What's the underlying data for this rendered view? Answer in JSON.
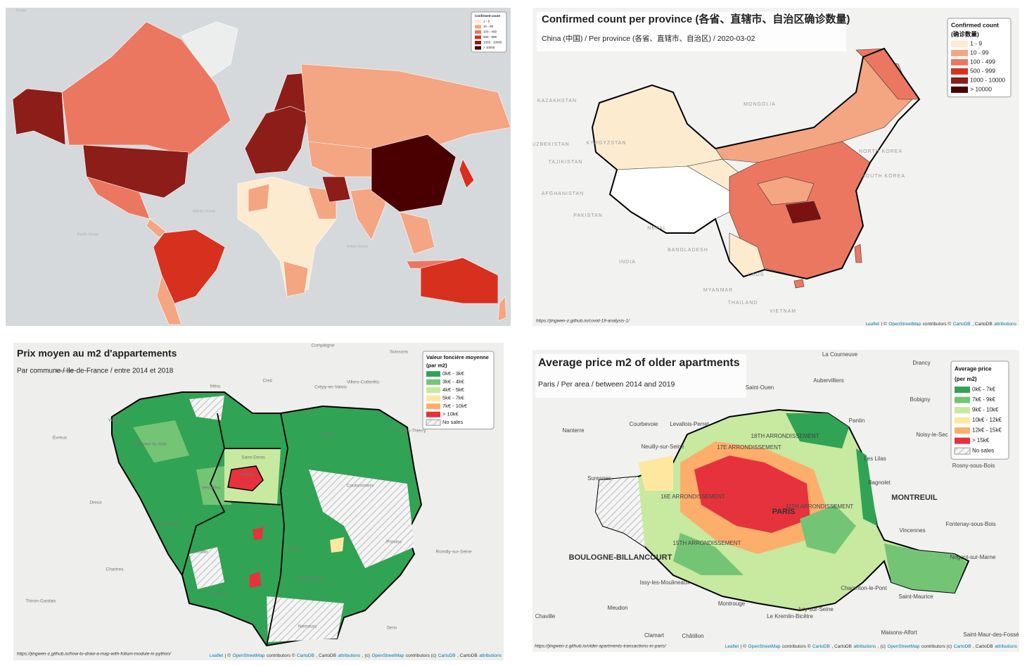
{
  "maps": [
    {
      "labels": [
        "Ocean",
        "Atlantic Ocean",
        "Pacific Ocean",
        "Indian Ocean"
      ],
      "legend": {
        "title": [
          "Confirmed count"
        ],
        "items": [
          {
            "label": "1 - 9",
            "color": "#fdebd0"
          },
          {
            "label": "10 - 99",
            "color": "#f4a582"
          },
          {
            "label": "100 - 499",
            "color": "#ec7760"
          },
          {
            "label": "500 - 999",
            "color": "#d7301f"
          },
          {
            "label": "1000 - 10000",
            "color": "#8c1d18"
          },
          {
            "label": "> 10000",
            "color": "#4a0000"
          }
        ]
      }
    },
    {
      "title": "Confirmed count per province (各省、直辖市、自治区确诊数量)",
      "subtitle": "China (中国) / Per province (各省、直辖市、自治区) / 2020-03-02",
      "labels": [
        "KAZAKHSTAN",
        "MONGOLIA",
        "UZBEKISTAN",
        "KYRGYZSTAN",
        "TAJIKISTAN",
        "AFGHANISTAN",
        "PAKISTAN",
        "NEPAL",
        "INDIA",
        "BANGLADESH",
        "MYANMAR",
        "LAOS",
        "THAILAND",
        "VIETNAM",
        "NORTH KOREA",
        "SOUTH KOREA"
      ],
      "legend": {
        "title": [
          "Confirmed count",
          "(确诊数量)"
        ],
        "items": [
          {
            "label": "1 - 9",
            "color": "#fdebd0"
          },
          {
            "label": "10 - 99",
            "color": "#f4a582"
          },
          {
            "label": "100 - 499",
            "color": "#ec7760"
          },
          {
            "label": "500 - 999",
            "color": "#d7301f"
          },
          {
            "label": "1000 - 10000",
            "color": "#8c1d18"
          },
          {
            "label": "> 10000",
            "color": "#4a0000"
          }
        ]
      },
      "source": "https://jingwen-z.github.io/covid-19-analysis-1/",
      "attribution": [
        {
          "text": "Leaflet",
          "link": true
        },
        {
          "text": "| ©"
        },
        {
          "text": "OpenStreetMap",
          "link": true
        },
        {
          "text": "contributors ©"
        },
        {
          "text": "CartoDB",
          "link": true
        },
        {
          "text": ", CartoDB"
        },
        {
          "text": "attributions",
          "link": true
        }
      ]
    },
    {
      "title": "Prix moyen au m2 d'appartements",
      "subtitle": "Par commune / Ile-de-France / entre 2014 et 2018",
      "labels": [
        "Compiègne",
        "Soissons",
        "Louviers",
        "Creil",
        "Méru",
        "Crépy-en-Valois",
        "Villers-Cotterêts",
        "Vernon",
        "Château-Thierry",
        "Évreux",
        "Mantes-la-Jolie",
        "Meaux",
        "Saint-Denis",
        "PARIS",
        "Versailles",
        "Coulommiers",
        "Dreux",
        "Rambouillet",
        "Évry",
        "Melun",
        "Provins",
        "Dourdan",
        "Chartres",
        "Fontainebleau",
        "Étampes",
        "Thiron-Gardais",
        "Nemours",
        "Sens",
        "Romilly-sur-Seine"
      ],
      "legend": {
        "title": [
          "Valeur foncière moyenne",
          "(par m2)"
        ],
        "items": [
          {
            "label": "0k€ - 3k€",
            "color": "#31a354"
          },
          {
            "label": "3k€ - 4k€",
            "color": "#74c476"
          },
          {
            "label": "4k€ - 5k€",
            "color": "#c7e9a0"
          },
          {
            "label": "5k€ - 7k€",
            "color": "#fee8a0"
          },
          {
            "label": "7k€ - 10k€",
            "color": "#fdae6b"
          },
          {
            "label": "> 10k€",
            "color": "#e6323c"
          },
          {
            "label": "No sales"
          }
        ]
      },
      "source": "https://jingwen-z.github.io/how-to-draw-a-map-with-folium-module-in-python/",
      "attribution": [
        {
          "text": "Leaflet",
          "link": true
        },
        {
          "text": "| ©"
        },
        {
          "text": "OpenStreetMap",
          "link": true
        },
        {
          "text": "contributors ©"
        },
        {
          "text": "CartoDB",
          "link": true
        },
        {
          "text": ", CartoDB"
        },
        {
          "text": "attributions",
          "link": true
        },
        {
          "text": ", (c)"
        },
        {
          "text": "OpenStreetMap",
          "link": true
        },
        {
          "text": "contributors (c)"
        },
        {
          "text": "CartoDB",
          "link": true
        },
        {
          "text": ", CartoDB"
        },
        {
          "text": "attributions",
          "link": true
        }
      ]
    },
    {
      "title": "Average price m2 of older apartments",
      "subtitle": "Paris / Per area / between 2014 and 2019",
      "labels": [
        "La Courneuve",
        "Drancy",
        "Aubervilliers",
        "Saint-Ouen",
        "Bobigny",
        "Courbevoie",
        "Levallois-Perret",
        "Pantin",
        "Nanterre",
        "Noisy-le-Sec",
        "Neuilly-sur-Seine",
        "Les Lilas",
        "Rosny-sous-Bois",
        "Suresnes",
        "Bagnolet",
        "MONTREUIL",
        "PARIS",
        "Fontenay-sous-Bois",
        "Vincennes",
        "BOULOGNE-BILLANCOURT",
        "Nogent-sur-Marne",
        "Issy-les-Moulineaux",
        "Charenton-le-Pont",
        "Saint-Maurice",
        "Montrouge",
        "Ivry-sur-Seine",
        "Meudon",
        "Le Kremlin-Bicêtre",
        "Chaville",
        "Clamart",
        "Châtillon",
        "Maisons-Alfort",
        "Saint-Maur-des-Fossés",
        "17E ARRONDISSEMENT",
        "18TH ARRONDISSEMENT",
        "16E ARRONDISSEMENT",
        "15TH ARRONDISSEMENT",
        "11TH ARRONDISSEMENT"
      ],
      "legend": {
        "title": [
          "Average price",
          "(per m2)"
        ],
        "items": [
          {
            "label": "0k€ - 7k€",
            "color": "#31a354"
          },
          {
            "label": "7k€ - 9k€",
            "color": "#74c476"
          },
          {
            "label": "9k€ - 10k€",
            "color": "#c7e9a0"
          },
          {
            "label": "10k€ - 12k€",
            "color": "#fee8a0"
          },
          {
            "label": "12k€ - 15k€",
            "color": "#fdae6b"
          },
          {
            "label": "> 15k€",
            "color": "#e6323c"
          },
          {
            "label": "No sales"
          }
        ]
      },
      "source": "https://jingwen-z.github.io/older-apartments-transactions-in-paris/",
      "attribution": [
        {
          "text": "Leaflet",
          "link": true
        },
        {
          "text": "| ©"
        },
        {
          "text": "OpenStreetMap",
          "link": true
        },
        {
          "text": "contributors ©"
        },
        {
          "text": "CartoDB",
          "link": true
        },
        {
          "text": ", CartoDB"
        },
        {
          "text": "attributions",
          "link": true
        },
        {
          "text": ", (c)"
        },
        {
          "text": "OpenStreetMap",
          "link": true
        },
        {
          "text": "contributors (c)"
        },
        {
          "text": "CartoDB",
          "link": true
        },
        {
          "text": ", CartoDB"
        },
        {
          "text": "attributions",
          "link": true
        }
      ]
    }
  ]
}
